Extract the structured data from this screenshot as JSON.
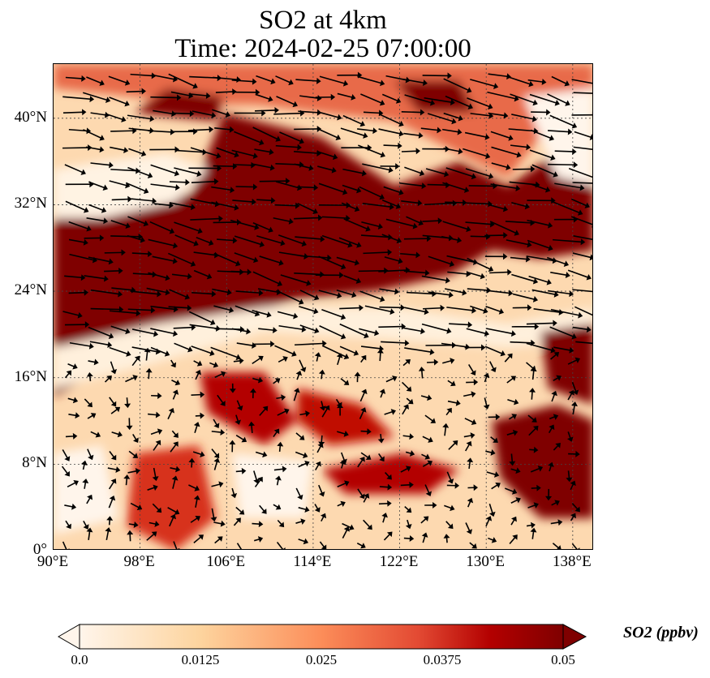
{
  "title": {
    "line1": "SO2 at 4km",
    "line2": "Time: 2024-02-25 07:00:00"
  },
  "map": {
    "lon_range": [
      90,
      140
    ],
    "lat_range": [
      0,
      45
    ],
    "x_ticks": [
      "90°E",
      "98°E",
      "106°E",
      "114°E",
      "122°E",
      "130°E",
      "138°E"
    ],
    "y_ticks": [
      "0°",
      "8°N",
      "16°N",
      "24°N",
      "32°N",
      "40°N"
    ]
  },
  "colorbar": {
    "label": "SO2 (ppbv)",
    "ticks": [
      "0.0",
      "0.0125",
      "0.025",
      "0.0375",
      "0.05"
    ],
    "range": [
      0,
      0.05
    ],
    "extend": "both",
    "colors": [
      "#fff5eb",
      "#fdd49e",
      "#fc8d59",
      "#d7301f",
      "#b30000",
      "#7f0000"
    ]
  }
}
